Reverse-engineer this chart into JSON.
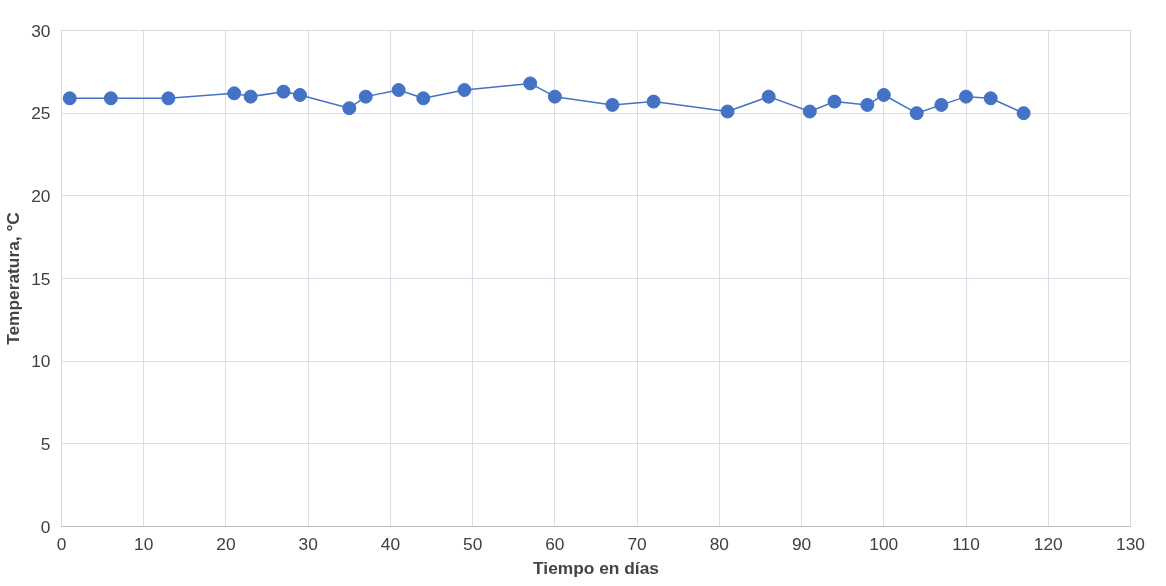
{
  "chart_data": {
    "type": "line",
    "xlabel": "Tiempo en días",
    "ylabel": "Temperatura, °C",
    "x": [
      1,
      6,
      13,
      21,
      23,
      27,
      29,
      35,
      37,
      41,
      44,
      49,
      57,
      60,
      67,
      72,
      81,
      86,
      91,
      94,
      98,
      100,
      104,
      107,
      110,
      113,
      117
    ],
    "series": [
      {
        "color": "#4472c4",
        "values": [
          25.9,
          25.9,
          25.9,
          26.2,
          26.0,
          26.3,
          26.1,
          25.3,
          26.0,
          26.4,
          25.9,
          26.4,
          26.8,
          26.0,
          25.5,
          25.7,
          25.1,
          26.0,
          25.1,
          25.7,
          25.5,
          26.1,
          25.0,
          25.5,
          26.0,
          25.9,
          25.0
        ]
      }
    ],
    "xlim": [
      0,
      130
    ],
    "xticks": [
      0,
      10,
      20,
      30,
      40,
      50,
      60,
      70,
      80,
      90,
      100,
      110,
      120,
      130
    ],
    "ylim": [
      0,
      30
    ],
    "yticks": [
      0,
      5,
      10,
      15,
      20,
      25,
      30
    ],
    "grid": true,
    "marker": "circle",
    "line_style": "solid"
  }
}
